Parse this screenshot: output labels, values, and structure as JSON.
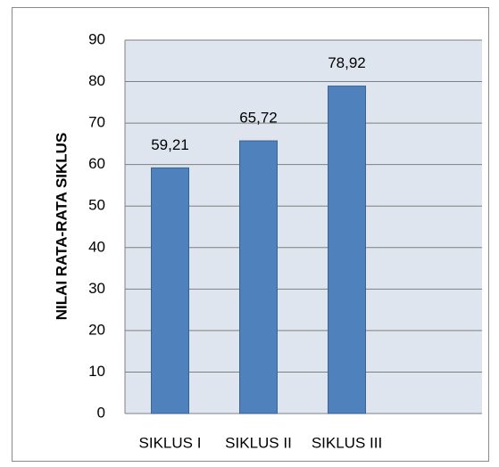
{
  "chart_data": {
    "type": "bar",
    "y_label": "NILAI RATA-RATA SIKLUS",
    "categories": [
      "SIKLUS I",
      "SIKLUS II",
      "SIKLUS III"
    ],
    "values": [
      59.21,
      65.72,
      78.92
    ],
    "value_labels": [
      "59,21",
      "65,72",
      "78,92"
    ],
    "color": "#4f81bd",
    "ylim": [
      0,
      90
    ],
    "yticks": [
      0,
      10,
      20,
      30,
      40,
      50,
      60,
      70,
      80,
      90
    ],
    "grid": true
  }
}
